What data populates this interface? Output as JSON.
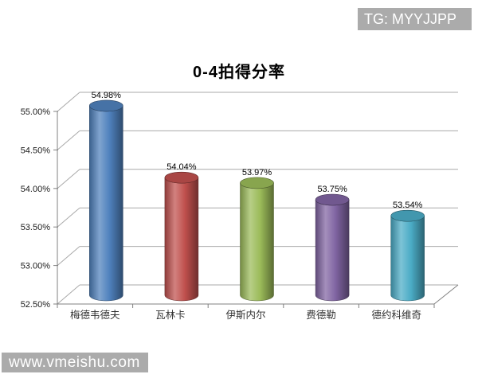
{
  "watermarks": {
    "top_right": "TG: MYYJJPP",
    "bottom_left": "www.vmeishu.com",
    "bg_color": "#ABABAB"
  },
  "chart_data": {
    "type": "bar",
    "subtype": "cylinder-3d",
    "title": "0-4拍得分率",
    "categories": [
      "梅德韦德夫",
      "瓦林卡",
      "伊斯内尔",
      "费德勒",
      "德约科维奇"
    ],
    "values": [
      54.98,
      54.04,
      53.97,
      53.75,
      53.54
    ],
    "data_labels": [
      "54.98%",
      "54.04%",
      "53.97%",
      "53.75%",
      "53.54%"
    ],
    "ylim": [
      52.5,
      55.0
    ],
    "ytick_step": 0.5,
    "ytick_labels": [
      "52.50%",
      "53.00%",
      "53.50%",
      "54.00%",
      "54.50%",
      "55.00%"
    ],
    "grid": true,
    "legend": "none",
    "bar_colors": [
      "#4F81BD",
      "#C0504D",
      "#9BBB59",
      "#8064A2",
      "#4BACC6"
    ],
    "gridline_color": "#A9A9A9",
    "axis_color": "#808080",
    "text_color": "#1a1a1a"
  }
}
